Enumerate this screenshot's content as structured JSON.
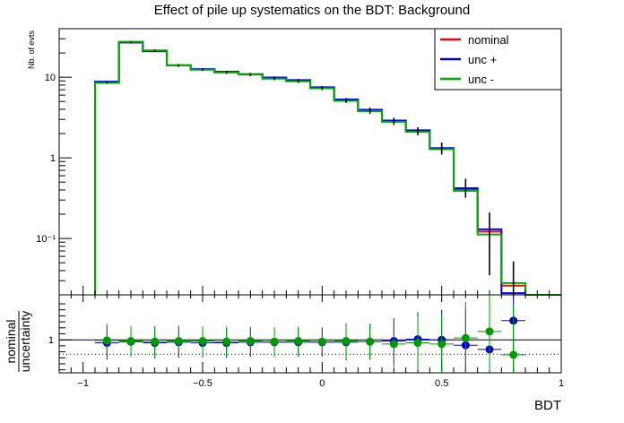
{
  "chart_data": {
    "type": "step",
    "title": "Effect of pile up systematics on the BDT: Background",
    "top_panel": {
      "ylabel": "Nb. of evts",
      "yscale": "log",
      "ylim": [
        0.02,
        40
      ],
      "y_tick_labels": [
        "10",
        "1",
        "10⁻¹"
      ],
      "legend": {
        "placement": "top-right",
        "entries": [
          "nominal",
          "unc +",
          "unc -"
        ]
      },
      "bin_edges": [
        -0.95,
        -0.85,
        -0.75,
        -0.65,
        -0.55,
        -0.45,
        -0.35,
        -0.25,
        -0.15,
        -0.05,
        0.05,
        0.15,
        0.25,
        0.35,
        0.45,
        0.55,
        0.65,
        0.75,
        0.85,
        0.95,
        1.0
      ],
      "series": [
        {
          "name": "nominal",
          "color": "#ff0000",
          "values": [
            8.6,
            27,
            21,
            14,
            12.5,
            11.5,
            10.8,
            9.7,
            9.0,
            7.4,
            5.2,
            3.85,
            2.85,
            2.15,
            1.3,
            0.41,
            0.122,
            0.026,
            0.0,
            0.0
          ]
        },
        {
          "name": "unc +",
          "color": "#0000ff",
          "values": [
            8.8,
            27,
            21,
            14.1,
            12.6,
            11.7,
            10.9,
            9.9,
            9.2,
            7.5,
            5.3,
            3.95,
            2.9,
            2.2,
            1.32,
            0.42,
            0.13,
            0.021,
            0.0,
            0.0
          ]
        },
        {
          "name": "unc -",
          "color": "#00aa00",
          "values": [
            8.5,
            27.5,
            21.5,
            14,
            12.4,
            11.5,
            10.8,
            9.6,
            8.9,
            7.3,
            5.1,
            3.8,
            2.8,
            2.1,
            1.28,
            0.39,
            0.112,
            0.028,
            0.0,
            0.0
          ]
        }
      ],
      "error_bars": {
        "x": [
          -0.9,
          -0.8,
          -0.7,
          -0.6,
          -0.5,
          -0.4,
          -0.3,
          -0.2,
          -0.1,
          0.0,
          0.1,
          0.2,
          0.3,
          0.4,
          0.5,
          0.6,
          0.7,
          0.8
        ],
        "low": [
          8.3,
          26.2,
          20.5,
          13.4,
          12.0,
          11.0,
          10.3,
          9.2,
          8.5,
          6.9,
          4.8,
          3.5,
          2.55,
          1.9,
          1.1,
          0.32,
          0.035,
          0.0
        ],
        "high": [
          8.9,
          28.0,
          22.0,
          14.6,
          13.0,
          12.0,
          11.3,
          10.2,
          9.5,
          7.8,
          5.5,
          4.2,
          3.15,
          2.4,
          1.55,
          0.55,
          0.21,
          0.052
        ]
      }
    },
    "bottom_panel": {
      "ylabel_numerator": "nominal",
      "ylabel_denominator": "uncertainty",
      "ylim": [
        0.45,
        1.75
      ],
      "y_tick_labels": [
        "1"
      ],
      "reference_line": 1.0,
      "dotted_line": 0.76,
      "xlabel": "BDT",
      "xlim": [
        -1.1,
        1.0
      ],
      "x_tick_labels": [
        "−1",
        "−0.5",
        "0",
        "0.5",
        "1"
      ],
      "series": [
        {
          "name": "unc +",
          "color": "#0000cc",
          "x": [
            -0.9,
            -0.8,
            -0.7,
            -0.6,
            -0.5,
            -0.4,
            -0.3,
            -0.2,
            -0.1,
            0.0,
            0.1,
            0.2,
            0.3,
            0.4,
            0.5,
            0.6,
            0.7,
            0.8
          ],
          "y": [
            0.95,
            0.97,
            0.95,
            0.96,
            0.95,
            0.95,
            0.96,
            0.96,
            0.96,
            0.96,
            0.96,
            0.97,
            0.98,
            1.01,
            1.0,
            0.91,
            0.84,
            1.32
          ]
        },
        {
          "name": "unc -",
          "color": "#009900",
          "x": [
            -0.9,
            -0.8,
            -0.7,
            -0.6,
            -0.5,
            -0.4,
            -0.3,
            -0.2,
            -0.1,
            0.0,
            0.1,
            0.2,
            0.3,
            0.4,
            0.5,
            0.6,
            0.7,
            0.8
          ],
          "y": [
            0.99,
            0.98,
            0.97,
            0.98,
            0.98,
            0.97,
            0.98,
            0.97,
            0.98,
            0.97,
            0.98,
            0.97,
            0.93,
            0.95,
            0.93,
            1.03,
            1.14,
            0.75
          ]
        }
      ],
      "x_error": 0.05,
      "y_error": [
        0.28,
        0.25,
        0.26,
        0.26,
        0.24,
        0.25,
        0.24,
        0.24,
        0.24,
        0.24,
        0.3,
        0.3,
        0.38,
        0.45,
        0.5,
        0.6,
        0.65,
        0.85
      ]
    }
  }
}
